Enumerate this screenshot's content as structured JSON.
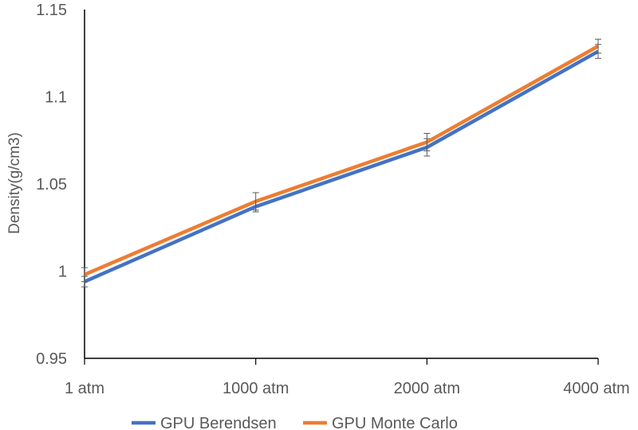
{
  "chart_data": {
    "type": "line",
    "title": "",
    "xlabel": "",
    "ylabel": "Density(g/cm3)",
    "categories": [
      "1 atm",
      "1000 atm",
      "2000 atm",
      "4000 atm"
    ],
    "ylim": [
      0.95,
      1.15
    ],
    "yticks": [
      "0.95",
      "1",
      "1.05",
      "1.1",
      "1.15"
    ],
    "grid": false,
    "legend": "bottom",
    "series": [
      {
        "name": "GPU Berendsen",
        "color": "#4472C4",
        "values": [
          0.994,
          1.037,
          1.071,
          1.126
        ],
        "errors": [
          0.003,
          0.003,
          0.005,
          0.004
        ]
      },
      {
        "name": "GPU Monte Carlo",
        "color": "#ED7D31",
        "values": [
          0.998,
          1.04,
          1.074,
          1.129
        ],
        "errors": [
          0.004,
          0.005,
          0.005,
          0.004
        ]
      }
    ]
  }
}
